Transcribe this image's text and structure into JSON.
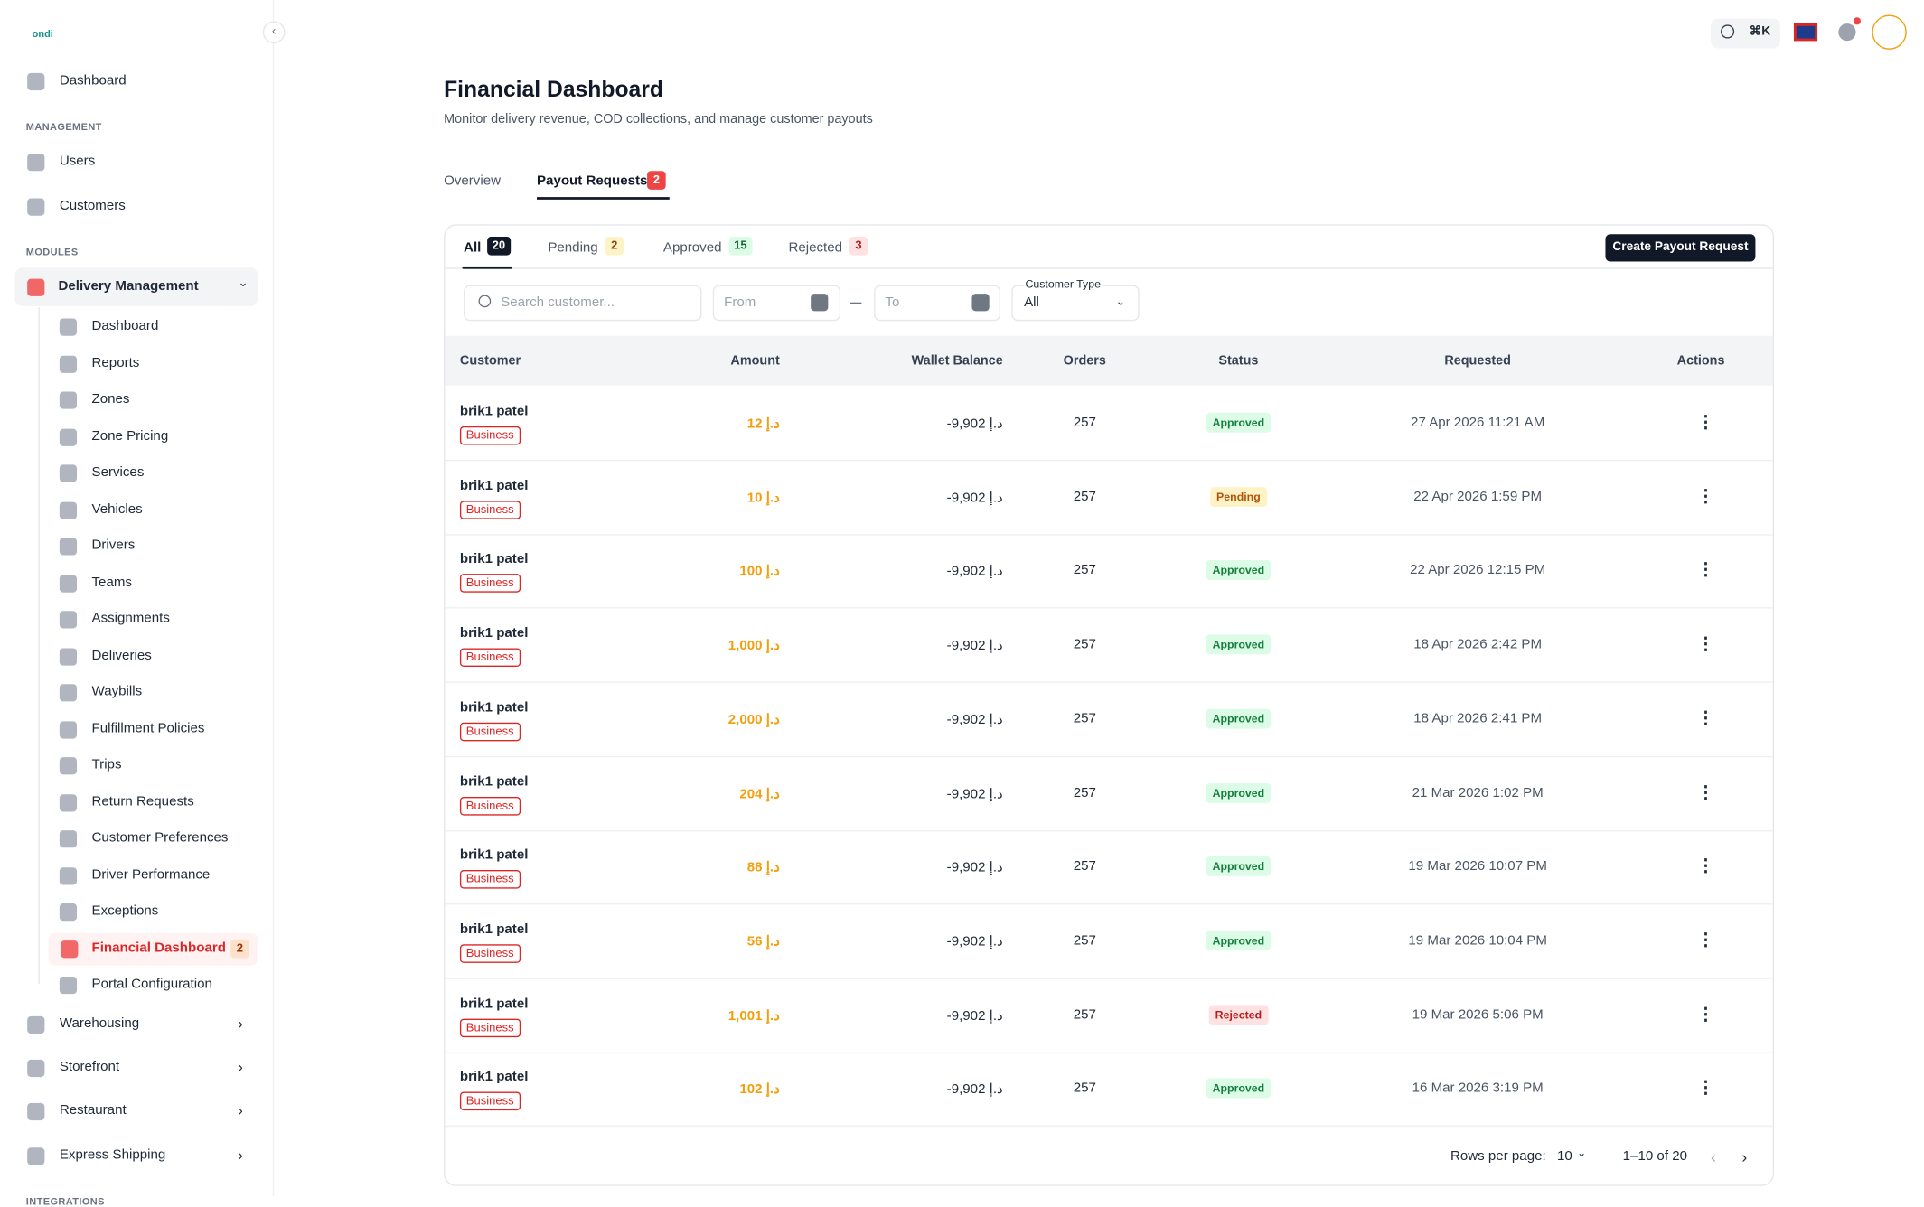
{
  "sidebar": {
    "logo": "ondi",
    "home": "Dashboard",
    "management": {
      "heading": "MANAGEMENT",
      "items": [
        "Users",
        "Customers"
      ]
    },
    "modules": {
      "heading": "MODULES",
      "group": "Delivery Management",
      "children": [
        {
          "label": "Dashboard"
        },
        {
          "label": "Reports"
        },
        {
          "label": "Zones"
        },
        {
          "label": "Zone Pricing"
        },
        {
          "label": "Services"
        },
        {
          "label": "Vehicles"
        },
        {
          "label": "Drivers"
        },
        {
          "label": "Teams"
        },
        {
          "label": "Assignments"
        },
        {
          "label": "Deliveries"
        },
        {
          "label": "Waybills"
        },
        {
          "label": "Fulfillment Policies"
        },
        {
          "label": "Trips"
        },
        {
          "label": "Return Requests"
        },
        {
          "label": "Customer Preferences"
        },
        {
          "label": "Driver Performance"
        },
        {
          "label": "Exceptions"
        },
        {
          "label": "Financial Dashboard",
          "badge": 2
        },
        {
          "label": "Portal Configuration"
        }
      ],
      "items": [
        "Warehousing",
        "Storefront",
        "Restaurant",
        "Express Shipping"
      ]
    },
    "integrations": "INTEGRATIONS"
  },
  "header": {
    "shortcut": "⌘K"
  },
  "page": {
    "title": "Financial Dashboard",
    "subtitle": "Monitor delivery revenue, COD collections, and manage customer payouts",
    "tabs": [
      {
        "label": "Overview"
      },
      {
        "label": "Payout Requests",
        "badge": 2
      }
    ],
    "filters": [
      {
        "label": "All",
        "count": 20
      },
      {
        "label": "Pending",
        "count": 2
      },
      {
        "label": "Approved",
        "count": 15
      },
      {
        "label": "Rejected",
        "count": 3
      }
    ],
    "create_button": "Create Payout Request",
    "search_placeholder": "Search customer...",
    "from": "From",
    "to": "To",
    "customer_type_label": "Customer Type",
    "customer_type_value": "All"
  },
  "table": {
    "columns": [
      "Customer",
      "Amount",
      "Wallet Balance",
      "Orders",
      "Status",
      "Requested",
      "Actions"
    ],
    "rows": [
      [
        "brik1 patel",
        "Business",
        "12 د.إ",
        "-9,902 د.إ",
        257,
        "Approved",
        "27 Apr 2026 11:21 AM"
      ],
      [
        "brik1 patel",
        "Business",
        "10 د.إ",
        "-9,902 د.إ",
        257,
        "Pending",
        "22 Apr 2026 1:59 PM"
      ],
      [
        "brik1 patel",
        "Business",
        "100 د.إ",
        "-9,902 د.إ",
        257,
        "Approved",
        "22 Apr 2026 12:15 PM"
      ],
      [
        "brik1 patel",
        "Business",
        "1,000 د.إ",
        "-9,902 د.إ",
        257,
        "Approved",
        "18 Apr 2026 2:42 PM"
      ],
      [
        "brik1 patel",
        "Business",
        "2,000 د.إ",
        "-9,902 د.إ",
        257,
        "Approved",
        "18 Apr 2026 2:41 PM"
      ],
      [
        "brik1 patel",
        "Business",
        "204 د.إ",
        "-9,902 د.إ",
        257,
        "Approved",
        "21 Mar 2026 1:02 PM"
      ],
      [
        "brik1 patel",
        "Business",
        "88 د.إ",
        "-9,902 د.إ",
        257,
        "Approved",
        "19 Mar 2026 10:07 PM"
      ],
      [
        "brik1 patel",
        "Business",
        "56 د.إ",
        "-9,902 د.إ",
        257,
        "Approved",
        "19 Mar 2026 10:04 PM"
      ],
      [
        "brik1 patel",
        "Business",
        "1,001 د.إ",
        "-9,902 د.إ",
        257,
        "Rejected",
        "19 Mar 2026 5:06 PM"
      ],
      [
        "brik1 patel",
        "Business",
        "102 د.إ",
        "-9,902 د.إ",
        257,
        "Approved",
        "16 Mar 2026 3:19 PM"
      ]
    ]
  },
  "pagination": {
    "rows_label": "Rows per page:",
    "rows": 10,
    "range": "1–10 of 20"
  }
}
